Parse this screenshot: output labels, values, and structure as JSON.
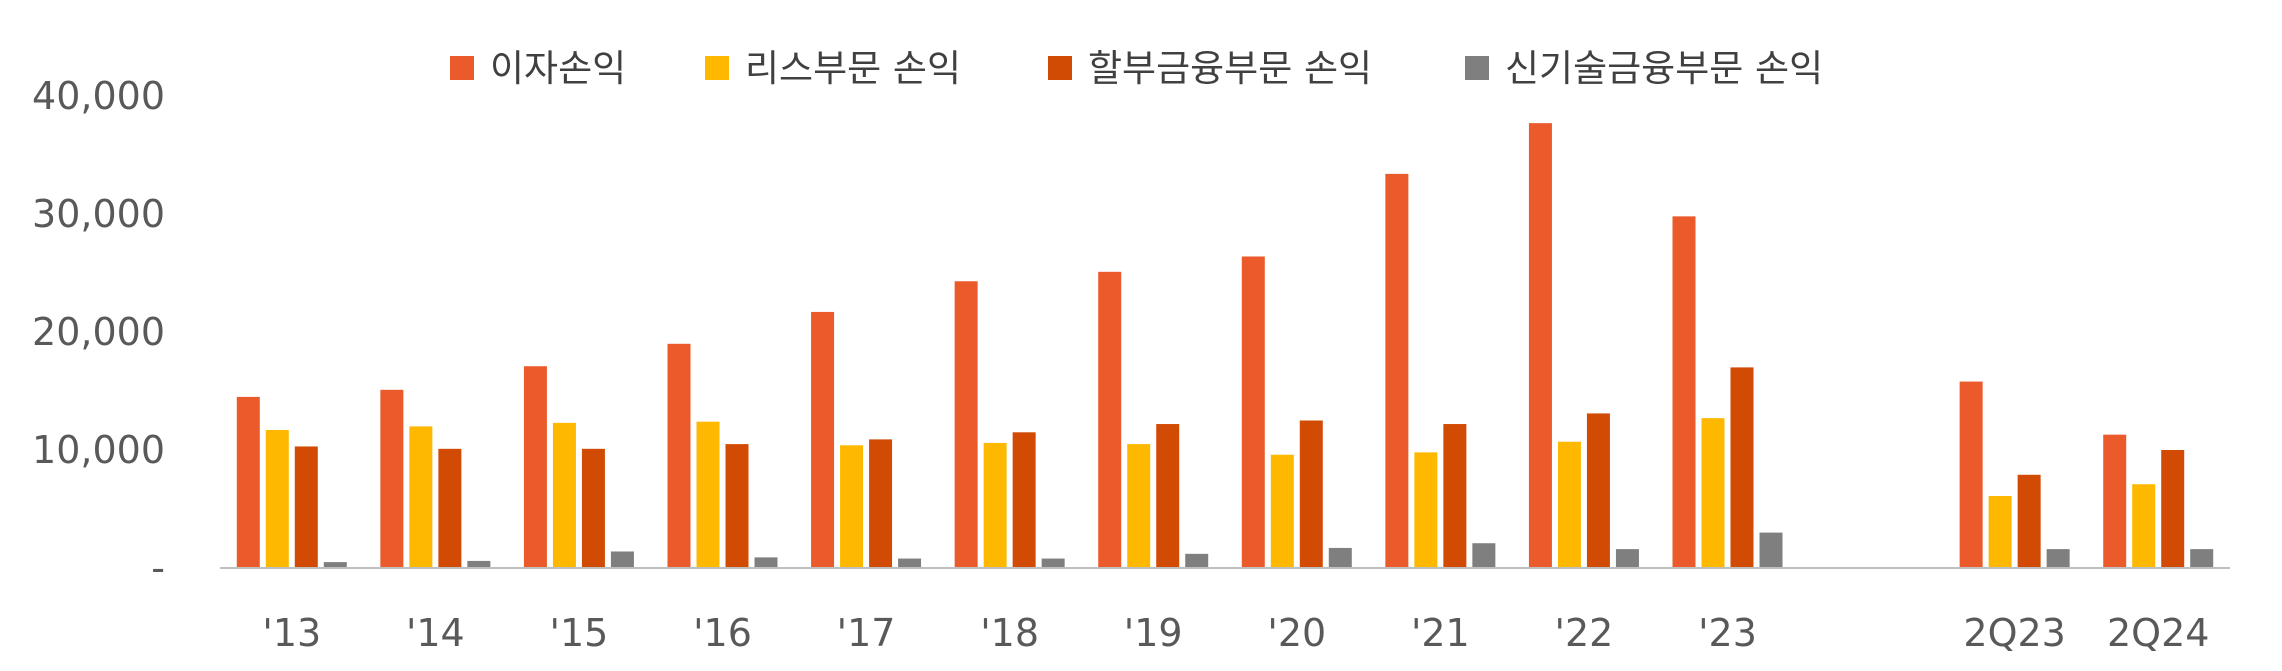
{
  "chart_data": {
    "type": "bar",
    "categories": [
      "'13",
      "'14",
      "'15",
      "'16",
      "'17",
      "'18",
      "'19",
      "'20",
      "'21",
      "'22",
      "'23",
      "",
      "2Q23",
      "2Q24"
    ],
    "series": [
      {
        "name": "이자손익",
        "color": "#EA5A2A",
        "values": [
          14500,
          15100,
          17100,
          19000,
          21700,
          24300,
          25100,
          26400,
          33400,
          37700,
          29800,
          null,
          15800,
          11300
        ]
      },
      {
        "name": "리스부문 손익",
        "color": "#FFB800",
        "values": [
          11700,
          12000,
          12300,
          12400,
          10400,
          10600,
          10500,
          9600,
          9800,
          10700,
          12700,
          null,
          6100,
          7100
        ]
      },
      {
        "name": "할부금융부문 손익",
        "color": "#D14B04",
        "values": [
          10300,
          10100,
          10100,
          10500,
          10900,
          11500,
          12200,
          12500,
          12200,
          13100,
          17000,
          null,
          7900,
          10000
        ]
      },
      {
        "name": "신기술금융부문 손익",
        "color": "#7F7F7F",
        "values": [
          500,
          600,
          1400,
          900,
          800,
          800,
          1200,
          1700,
          2100,
          1600,
          3000,
          null,
          1600,
          1600
        ]
      }
    ],
    "yticks": [
      "-",
      "10,000",
      "20,000",
      "30,000",
      "40,000"
    ],
    "ylim": [
      0,
      40000
    ],
    "legend_position": "top",
    "grid": false,
    "title": "",
    "xlabel": "",
    "ylabel": ""
  }
}
